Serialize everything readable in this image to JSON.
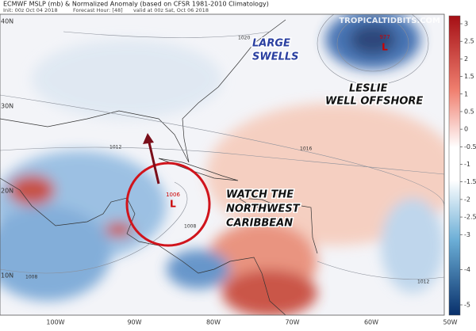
{
  "header": {
    "title": "ECMWF MSLP (mb) & Normalized Anomaly (based on CFSR 1981-2010 Climatology)",
    "init": "Init: 00z Oct 04 2018",
    "forecast_hour": "Forecast Hour: [48]",
    "valid": "valid at 00z Sat, Oct 06 2018",
    "credit": "TROPICALTIDBITS.COM"
  },
  "annotations": {
    "swells": [
      "LARGE",
      "SWELLS"
    ],
    "leslie": [
      "LESLIE",
      "WELL OFFSHORE"
    ],
    "caribbean": [
      "WATCH THE",
      "NORTHWEST",
      "CARIBBEAN"
    ]
  },
  "lows": [
    {
      "pressure": "977",
      "symbol": "L"
    },
    {
      "pressure": "1006",
      "symbol": "L"
    }
  ],
  "isobars": [
    "1020",
    "1016",
    "1012",
    "1012",
    "1008",
    "1008"
  ],
  "lat_labels": [
    "40N",
    "30N",
    "20N",
    "10N"
  ],
  "lon_labels": [
    "100W",
    "90W",
    "80W",
    "70W",
    "60W",
    "50W"
  ],
  "colorbar": {
    "ticks": [
      3,
      2.5,
      2,
      1.5,
      1,
      0.5,
      0,
      -0.5,
      -1,
      -1.5,
      -2,
      -2.5,
      -3,
      -4,
      -5
    ]
  }
}
